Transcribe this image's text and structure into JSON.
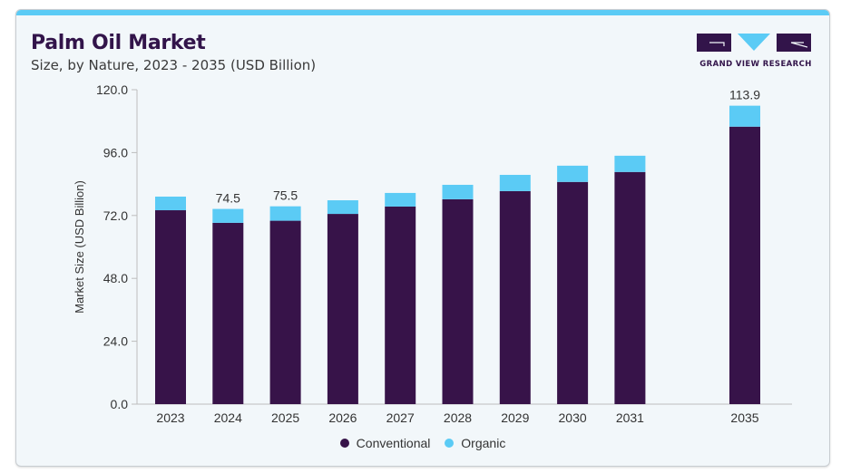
{
  "header": {
    "title": "Palm Oil Market",
    "subtitle": "Size, by Nature, 2023 - 2035 (USD Billion)"
  },
  "logo": {
    "text": "GRAND VIEW RESEARCH",
    "colors": {
      "dark": "#32144a",
      "accent": "#5bcbf5"
    }
  },
  "colors": {
    "conventional": "#371349",
    "organic": "#5bcbf5",
    "card_bg": "#f2f7fa",
    "accent_bar": "#5bcbf5"
  },
  "chart_data": {
    "type": "bar",
    "stacked": true,
    "title": "Palm Oil Market",
    "subtitle": "Size, by Nature, 2023 - 2035 (USD Billion)",
    "xlabel": "",
    "ylabel": "Market Size (USD Billion)",
    "ylim": [
      0,
      120
    ],
    "yticks": [
      "0.0",
      "24.0",
      "48.0",
      "72.0",
      "96.0",
      "120.0"
    ],
    "ytick_values": [
      0,
      24,
      48,
      72,
      96,
      120
    ],
    "grid": false,
    "categories": [
      "2023",
      "2024",
      "2025",
      "2026",
      "2027",
      "2028",
      "2029",
      "2030",
      "2031",
      "2035"
    ],
    "series": [
      {
        "name": "Conventional",
        "color": "#371349",
        "values": [
          74.0,
          69.2,
          70.0,
          72.6,
          75.4,
          78.2,
          81.3,
          84.8,
          88.6,
          105.9
        ]
      },
      {
        "name": "Organic",
        "color": "#5bcbf5",
        "values": [
          5.2,
          5.3,
          5.5,
          5.2,
          5.2,
          5.5,
          6.2,
          6.2,
          6.2,
          8.0
        ]
      }
    ],
    "data_labels": {
      "2024": "74.5",
      "2025": "75.5",
      "2035": "113.9"
    },
    "legend": {
      "position": "bottom-center",
      "entries": [
        "Conventional",
        "Organic"
      ]
    }
  }
}
